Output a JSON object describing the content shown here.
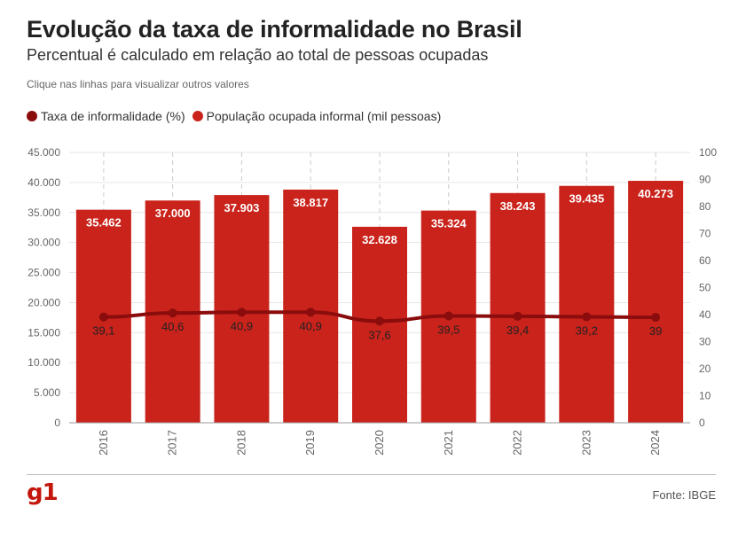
{
  "header": {
    "title": "Evolução da taxa de informalidade no Brasil",
    "subtitle": "Percentual é calculado em relação ao total de pessoas ocupadas",
    "note": "Clique nas linhas para visualizar outros valores"
  },
  "legend": [
    {
      "label": "Taxa de informalidade (%)",
      "color": "#8b0c0c"
    },
    {
      "label": "População ocupada informal (mil pessoas)",
      "color": "#c9231b"
    }
  ],
  "footer": {
    "logo": "g1",
    "source": "Fonte: IBGE"
  },
  "chart_data": {
    "type": "bar+line",
    "categories": [
      "2016",
      "2017",
      "2018",
      "2019",
      "2020",
      "2021",
      "2022",
      "2023",
      "2024"
    ],
    "series": [
      {
        "name": "População ocupada informal (mil pessoas)",
        "type": "bar",
        "axis": "left",
        "values": [
          35462,
          37000,
          37903,
          38817,
          32628,
          35324,
          38243,
          39435,
          40273
        ],
        "labels": [
          "35.462",
          "37.000",
          "37.903",
          "38.817",
          "32.628",
          "35.324",
          "38.243",
          "39.435",
          "40.273"
        ],
        "color": "#c9231b"
      },
      {
        "name": "Taxa de informalidade (%)",
        "type": "line",
        "axis": "right",
        "values": [
          39.1,
          40.6,
          40.9,
          40.9,
          37.6,
          39.5,
          39.4,
          39.2,
          39
        ],
        "labels": [
          "39,1",
          "40,6",
          "40,9",
          "40,9",
          "37,6",
          "39,5",
          "39,4",
          "39,2",
          "39"
        ],
        "color": "#8b0c0c"
      }
    ],
    "y_left": {
      "lim": [
        0,
        45000
      ],
      "ticks": [
        0,
        5000,
        10000,
        15000,
        20000,
        25000,
        30000,
        35000,
        40000,
        45000
      ],
      "tick_labels": [
        "0",
        "5.000",
        "10.000",
        "15.000",
        "20.000",
        "25.000",
        "30.000",
        "35.000",
        "40.000",
        "45.000"
      ]
    },
    "y_right": {
      "lim": [
        0,
        100
      ],
      "ticks": [
        0,
        10,
        20,
        30,
        40,
        50,
        60,
        70,
        80,
        90,
        100
      ],
      "tick_labels": [
        "0",
        "10",
        "20",
        "30",
        "40",
        "50",
        "60",
        "70",
        "80",
        "90",
        "100"
      ]
    },
    "grid": true
  }
}
